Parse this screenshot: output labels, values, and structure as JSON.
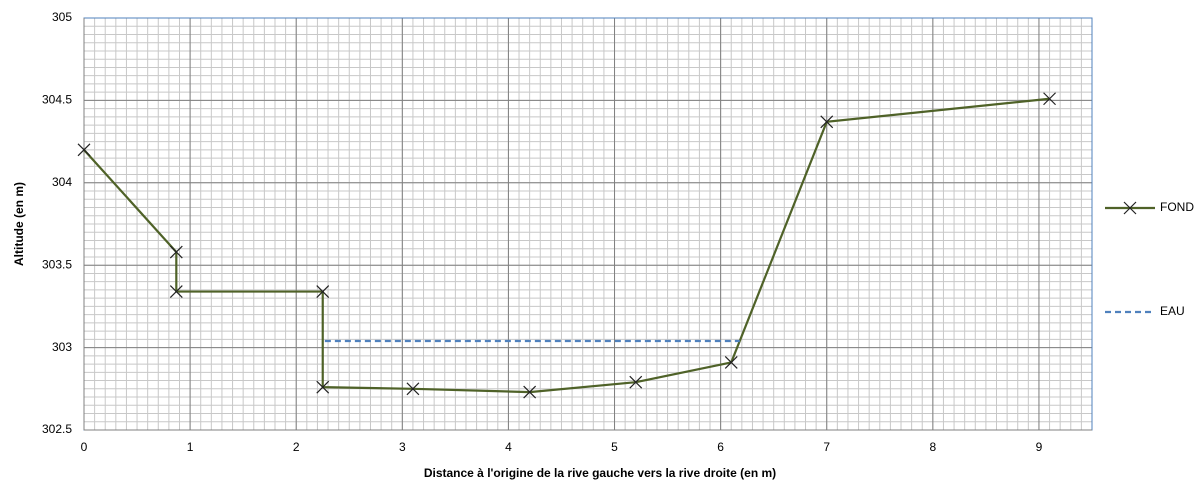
{
  "chart_data": {
    "type": "line",
    "xlabel": "Distance à l'origine de la rive gauche vers la rive droite (en m)",
    "ylabel": "Altitude  (en m)",
    "xlim": [
      0,
      9.5
    ],
    "xticks": [
      0,
      1,
      2,
      3,
      4,
      5,
      6,
      7,
      8,
      9
    ],
    "ylim": [
      302.5,
      305
    ],
    "yticks": [
      302.5,
      303,
      303.5,
      304,
      304.5,
      305
    ],
    "grid": true,
    "legend": "right",
    "series": [
      {
        "name": "FOND",
        "color": "#4f6228",
        "marker": "x",
        "dashed": false,
        "x": [
          0,
          0.87,
          0.87,
          2.25,
          2.25,
          3.1,
          4.2,
          5.2,
          6.1,
          7.0,
          9.1
        ],
        "values": [
          304.2,
          303.58,
          303.34,
          303.34,
          302.76,
          302.75,
          302.73,
          302.79,
          302.91,
          304.37,
          304.51
        ]
      },
      {
        "name": "EAU",
        "color": "#4f81bd",
        "marker": "none",
        "dashed": true,
        "x": [
          2.27,
          6.18
        ],
        "values": [
          303.04,
          303.04
        ]
      }
    ]
  }
}
